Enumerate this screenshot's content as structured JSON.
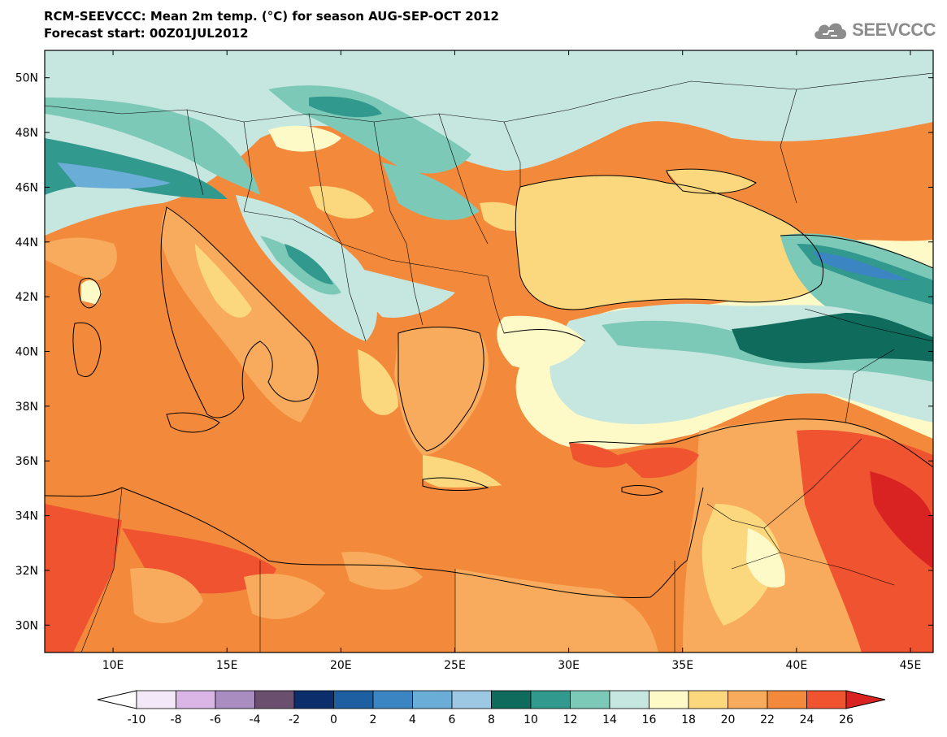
{
  "header": {
    "title_line1": "RCM-SEEVCCC: Mean 2m temp. (°C) for season AUG-SEP-OCT 2012",
    "title_line2": "Forecast start: 00Z01JUL2012"
  },
  "logo": {
    "text": "SEEVCCC",
    "icon": "cloud-icon",
    "color": "#8c8c8c"
  },
  "map": {
    "lon_ticks": [
      "10E",
      "15E",
      "20E",
      "25E",
      "30E",
      "35E",
      "40E",
      "45E"
    ],
    "lon_values": [
      10,
      15,
      20,
      25,
      30,
      35,
      40,
      45
    ],
    "lat_ticks": [
      "50N",
      "48N",
      "46N",
      "44N",
      "42N",
      "40N",
      "38N",
      "36N",
      "34N",
      "32N",
      "30N"
    ],
    "lat_values": [
      50,
      48,
      46,
      44,
      42,
      40,
      38,
      36,
      34,
      32,
      30
    ],
    "lon_range": [
      7,
      46
    ],
    "lat_range": [
      29,
      51
    ]
  },
  "colorbar": {
    "labels": [
      "-10",
      "-8",
      "-6",
      "-4",
      "-2",
      "0",
      "2",
      "4",
      "6",
      "8",
      "10",
      "12",
      "14",
      "16",
      "18",
      "20",
      "22",
      "24",
      "26"
    ],
    "colors": [
      "#f3e8f7",
      "#d9b6e6",
      "#a98cc0",
      "#6b4f6e",
      "#0c2f6b",
      "#1d5fa0",
      "#3b86c2",
      "#6aaed8",
      "#9cc8e4",
      "#0f6b5c",
      "#32998e",
      "#7cc9b8",
      "#c6e6e0",
      "#fefac8",
      "#fbd77e",
      "#f8ab5c",
      "#f38a3b",
      "#ef5330"
    ],
    "low_color": "#ffffff",
    "high_color": "#d92323"
  }
}
